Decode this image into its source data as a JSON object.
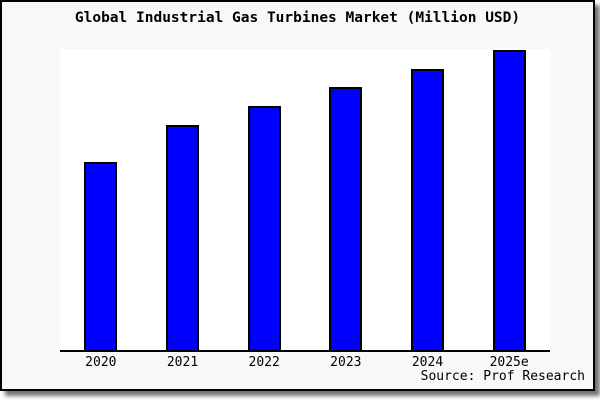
{
  "title": "Global Industrial Gas Turbines Market (Million USD)",
  "source": "Source: Prof Research",
  "colors": {
    "bar_fill": "#0000ff",
    "bar_border": "#000000",
    "card_background": "#f8f8f8",
    "plot_background": "#ffffff",
    "axis": "#000000"
  },
  "chart_data": {
    "type": "bar",
    "title": "Global Industrial Gas Turbines Market (Million USD)",
    "categories": [
      "2020",
      "2021",
      "2022",
      "2023",
      "2024",
      "2025e"
    ],
    "values": [
      188,
      225,
      244,
      263,
      281,
      300
    ],
    "units": "relative (no y-axis ticks shown; values estimated from bar heights)",
    "xlabel": "",
    "ylabel": "",
    "ylim": [
      0,
      301
    ],
    "grid": false,
    "legend": false,
    "source_note": "Source: Prof Research"
  }
}
